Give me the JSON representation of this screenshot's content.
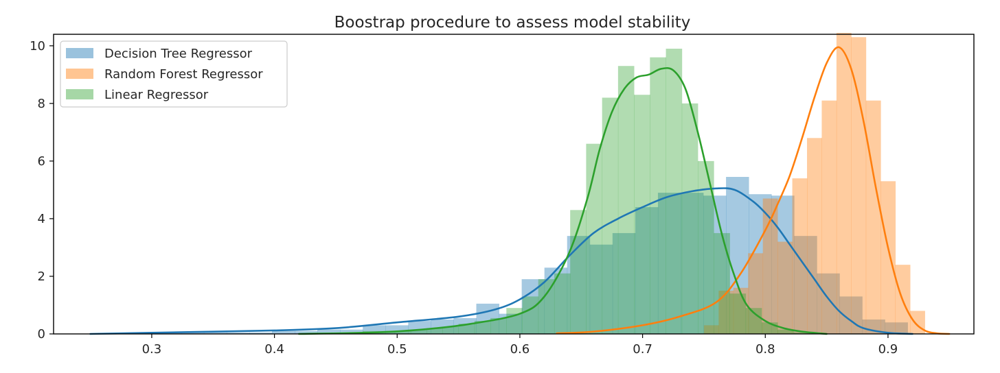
{
  "chart_data": {
    "type": "histogram",
    "title": "Boostrap procedure to assess model stability",
    "xlabel": "",
    "ylabel": "",
    "xlim": [
      0.22,
      0.97
    ],
    "ylim": [
      0,
      10.4
    ],
    "x_ticks": [
      0.3,
      0.4,
      0.5,
      0.6,
      0.7,
      0.8,
      0.9
    ],
    "x_tick_labels": [
      "0.3",
      "0.4",
      "0.5",
      "0.6",
      "0.7",
      "0.8",
      "0.9"
    ],
    "y_ticks": [
      0,
      2,
      4,
      6,
      8,
      10
    ],
    "y_tick_labels": [
      "0",
      "2",
      "4",
      "6",
      "8",
      "10"
    ],
    "grid": false,
    "legend_position": "top-left",
    "series": [
      {
        "name": "Decision Tree Regressor",
        "color": "#1f77b4",
        "hist_alpha": 0.4,
        "bin_edges": [
          0.25,
          0.2685,
          0.287,
          0.3055,
          0.324,
          0.3425,
          0.361,
          0.3795,
          0.398,
          0.4165,
          0.435,
          0.4535,
          0.472,
          0.4905,
          0.509,
          0.5275,
          0.546,
          0.5645,
          0.583,
          0.6015,
          0.62,
          0.6385,
          0.657,
          0.6755,
          0.694,
          0.7125,
          0.731,
          0.7495,
          0.768,
          0.7865,
          0.805,
          0.8235,
          0.842,
          0.8605,
          0.879,
          0.8975,
          0.916
        ],
        "heights": [
          0.02,
          0.02,
          0.02,
          0.05,
          0.05,
          0.05,
          0.05,
          0.05,
          0.1,
          0.1,
          0.15,
          0.15,
          0.3,
          0.3,
          0.45,
          0.5,
          0.55,
          1.05,
          0.7,
          1.9,
          2.3,
          3.4,
          3.1,
          3.5,
          4.4,
          4.9,
          4.9,
          4.8,
          5.45,
          4.85,
          4.8,
          3.4,
          2.1,
          1.3,
          0.5,
          0.4
        ],
        "kde_x": [
          0.25,
          0.3,
          0.35,
          0.4,
          0.45,
          0.5,
          0.55,
          0.58,
          0.6,
          0.62,
          0.64,
          0.66,
          0.68,
          0.7,
          0.72,
          0.74,
          0.76,
          0.775,
          0.79,
          0.8,
          0.81,
          0.82,
          0.83,
          0.84,
          0.85,
          0.86,
          0.87,
          0.88,
          0.9,
          0.92
        ],
        "kde_y": [
          0.0,
          0.04,
          0.08,
          0.12,
          0.2,
          0.4,
          0.6,
          0.85,
          1.2,
          1.8,
          2.7,
          3.5,
          4.0,
          4.4,
          4.75,
          4.95,
          5.05,
          5.0,
          4.6,
          4.2,
          3.7,
          3.1,
          2.5,
          1.9,
          1.3,
          0.8,
          0.45,
          0.2,
          0.04,
          0.0
        ]
      },
      {
        "name": "Random Forest Regressor",
        "color": "#ff7f0e",
        "hist_alpha": 0.4,
        "bin_edges": [
          0.75,
          0.762,
          0.774,
          0.786,
          0.798,
          0.81,
          0.822,
          0.834,
          0.846,
          0.858,
          0.87,
          0.882,
          0.894,
          0.906,
          0.918,
          0.93
        ],
        "heights": [
          0.3,
          1.5,
          1.6,
          2.8,
          4.7,
          3.2,
          5.4,
          6.8,
          8.1,
          10.45,
          10.3,
          8.1,
          5.3,
          2.4,
          0.8
        ],
        "kde_x": [
          0.63,
          0.66,
          0.7,
          0.73,
          0.76,
          0.78,
          0.8,
          0.81,
          0.82,
          0.83,
          0.84,
          0.85,
          0.86,
          0.87,
          0.88,
          0.89,
          0.9,
          0.91,
          0.92,
          0.93,
          0.94,
          0.95
        ],
        "kde_y": [
          0.02,
          0.08,
          0.3,
          0.6,
          1.1,
          2.1,
          3.6,
          4.5,
          5.5,
          6.8,
          8.2,
          9.4,
          9.95,
          9.2,
          7.4,
          5.1,
          3.0,
          1.4,
          0.5,
          0.12,
          0.02,
          0.0
        ]
      },
      {
        "name": "Linear Regressor",
        "color": "#2ca02c",
        "hist_alpha": 0.37,
        "bin_edges": [
          0.42,
          0.433,
          0.446,
          0.459,
          0.472,
          0.485,
          0.498,
          0.511,
          0.524,
          0.537,
          0.55,
          0.563,
          0.576,
          0.589,
          0.602,
          0.615,
          0.628,
          0.641,
          0.654,
          0.667,
          0.68,
          0.693,
          0.706,
          0.719,
          0.732,
          0.745,
          0.758,
          0.771,
          0.784,
          0.797,
          0.81,
          0.823,
          0.836,
          0.849
        ],
        "heights": [
          0.02,
          0.02,
          0.05,
          0.05,
          0.1,
          0.1,
          0.1,
          0.15,
          0.2,
          0.25,
          0.35,
          0.45,
          0.55,
          0.9,
          1.3,
          1.9,
          2.1,
          4.3,
          6.6,
          8.2,
          9.3,
          8.3,
          9.6,
          9.9,
          8.0,
          6.0,
          3.5,
          1.4,
          0.9,
          0.4,
          0.15,
          0.05,
          0.02
        ],
        "kde_x": [
          0.42,
          0.48,
          0.52,
          0.56,
          0.6,
          0.62,
          0.64,
          0.655,
          0.665,
          0.675,
          0.685,
          0.695,
          0.705,
          0.715,
          0.725,
          0.735,
          0.745,
          0.755,
          0.765,
          0.775,
          0.785,
          0.8,
          0.815,
          0.83,
          0.85
        ],
        "kde_y": [
          0.0,
          0.05,
          0.15,
          0.35,
          0.7,
          1.3,
          2.8,
          4.7,
          6.4,
          7.7,
          8.5,
          8.9,
          9.0,
          9.2,
          9.15,
          8.5,
          7.0,
          5.2,
          3.4,
          2.0,
          1.0,
          0.45,
          0.2,
          0.08,
          0.0
        ]
      }
    ]
  }
}
